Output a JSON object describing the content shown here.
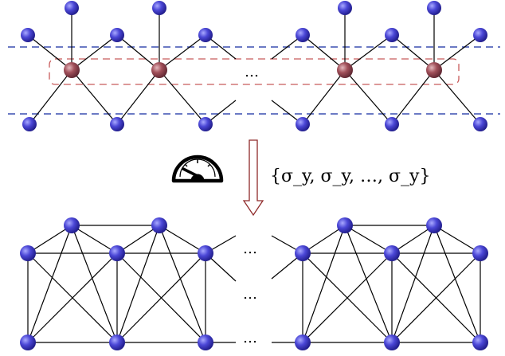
{
  "top_layer": {
    "ellipsis": "…"
  },
  "transition": {
    "measurement_label": "{σ_y, σ_y, …,  σ_y}",
    "meter_icon": "gauge-meter-icon",
    "arrow_icon": "down-arrow-icon"
  },
  "bottom_layer": {
    "ellipsis_top": "…",
    "ellipsis_mid": "…",
    "ellipsis_bottom": "…"
  },
  "colors": {
    "blue_node": "#3f3fc8",
    "red_node": "#9e4b55",
    "dashed_blue": "#3a4fb0",
    "dashed_red": "#c85a5a",
    "arrow": "#8f2a2a"
  }
}
